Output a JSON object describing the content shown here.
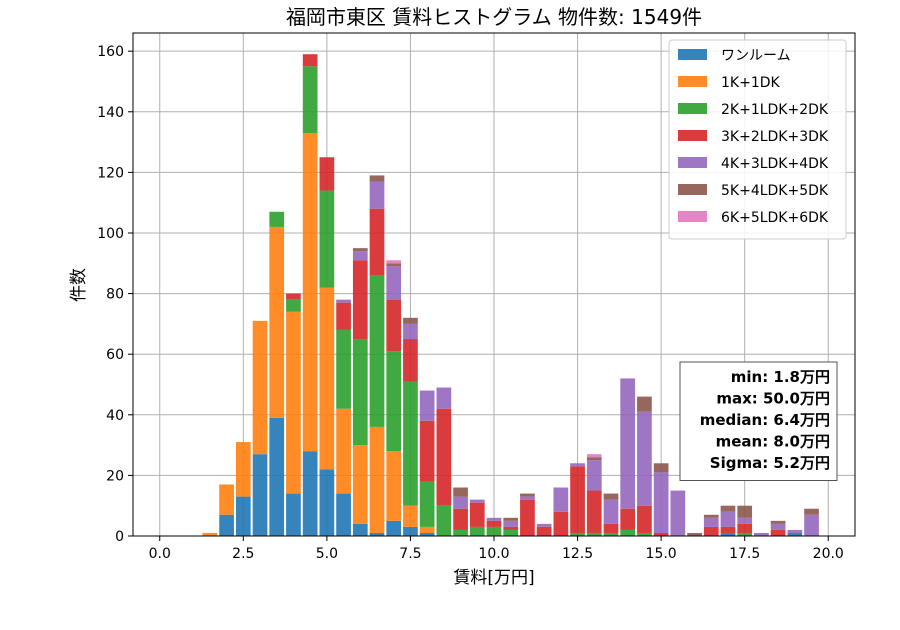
{
  "chart_data": {
    "type": "bar",
    "stacked": true,
    "title": "福岡市東区 賃料ヒストグラム 物件数: 1549件",
    "xlabel": "賃料[万円]",
    "ylabel": "件数",
    "xlim": [
      -0.8,
      20.8
    ],
    "ylim": [
      0,
      166
    ],
    "xticks": [
      0.0,
      2.5,
      5.0,
      7.5,
      10.0,
      12.5,
      15.0,
      17.5,
      20.0
    ],
    "xtick_labels": [
      "0.0",
      "2.5",
      "5.0",
      "7.5",
      "10.0",
      "12.5",
      "15.0",
      "17.5",
      "20.0"
    ],
    "yticks": [
      0,
      20,
      40,
      60,
      80,
      100,
      120,
      140,
      160
    ],
    "ytick_labels": [
      "0",
      "20",
      "40",
      "60",
      "80",
      "100",
      "120",
      "140",
      "160"
    ],
    "grid": true,
    "legend_position": "top-right",
    "bin_width": 0.5,
    "x": [
      1.5,
      2.0,
      2.5,
      3.0,
      3.5,
      4.0,
      4.5,
      5.0,
      5.5,
      6.0,
      6.5,
      7.0,
      7.5,
      8.0,
      8.5,
      9.0,
      9.5,
      10.0,
      10.5,
      11.0,
      11.5,
      12.0,
      12.5,
      13.0,
      13.5,
      14.0,
      14.5,
      15.0,
      15.5,
      16.0,
      16.5,
      17.0,
      17.5,
      18.0,
      18.5,
      19.0,
      19.5
    ],
    "series": [
      {
        "name": "ワンルーム",
        "color": "#1f77b4",
        "values": [
          0,
          7,
          13,
          27,
          39,
          14,
          28,
          22,
          14,
          4,
          1,
          5,
          3,
          1,
          0,
          0,
          0,
          0,
          0,
          0,
          0,
          0,
          0,
          0,
          0,
          0,
          0,
          0,
          0,
          0,
          0,
          1,
          0,
          0,
          0,
          1,
          0
        ]
      },
      {
        "name": "1K+1DK",
        "color": "#ff7f0e",
        "values": [
          1,
          10,
          18,
          44,
          63,
          60,
          105,
          60,
          28,
          26,
          35,
          23,
          7,
          2,
          0,
          0,
          0,
          0,
          0,
          0,
          0,
          0,
          0,
          0,
          0,
          0,
          0,
          0,
          0,
          0,
          0,
          0,
          0,
          0,
          0,
          0,
          0
        ]
      },
      {
        "name": "2K+1LDK+2DK",
        "color": "#2ca02c",
        "values": [
          0,
          0,
          0,
          0,
          5,
          4,
          22,
          32,
          26,
          35,
          50,
          33,
          41,
          15,
          10,
          2,
          3,
          3,
          2,
          0,
          0,
          0,
          1,
          1,
          1,
          2,
          1,
          0,
          0,
          0,
          0,
          0,
          1,
          0,
          0,
          0,
          0
        ]
      },
      {
        "name": "3K+2LDK+3DK",
        "color": "#d62728",
        "values": [
          0,
          0,
          0,
          0,
          0,
          2,
          4,
          11,
          9,
          26,
          22,
          17,
          14,
          20,
          32,
          7,
          8,
          2,
          1,
          12,
          3,
          8,
          22,
          14,
          3,
          7,
          9,
          1,
          0,
          0,
          3,
          2,
          3,
          0,
          2,
          0,
          0
        ]
      },
      {
        "name": "4K+3LDK+4DK",
        "color": "#9467bd",
        "values": [
          0,
          0,
          0,
          0,
          0,
          0,
          0,
          0,
          1,
          3,
          9,
          11,
          5,
          10,
          7,
          4,
          1,
          1,
          2,
          1,
          1,
          8,
          1,
          10,
          8,
          43,
          31,
          20,
          15,
          0,
          3,
          5,
          2,
          1,
          2,
          1,
          7
        ]
      },
      {
        "name": "5K+4LDK+5DK",
        "color": "#8c564b",
        "values": [
          0,
          0,
          0,
          0,
          0,
          0,
          0,
          0,
          0,
          1,
          2,
          1,
          2,
          0,
          0,
          3,
          0,
          0,
          1,
          1,
          0,
          0,
          0,
          1,
          2,
          0,
          5,
          3,
          0,
          1,
          1,
          2,
          4,
          0,
          1,
          0,
          2
        ]
      },
      {
        "name": "6K+5LDK+6DK",
        "color": "#e377c2",
        "values": [
          0,
          0,
          0,
          0,
          0,
          0,
          0,
          0,
          0,
          0,
          0,
          1,
          0,
          0,
          0,
          0,
          0,
          0,
          0,
          0,
          0,
          0,
          0,
          1,
          0,
          0,
          0,
          0,
          0,
          0,
          0,
          0,
          0,
          0,
          0,
          0,
          0
        ]
      }
    ],
    "stats": {
      "lines": [
        "min: 1.8万円",
        "max: 50.0万円",
        "median: 6.4万円",
        "mean: 8.0万円",
        "Sigma: 5.2万円"
      ]
    }
  }
}
